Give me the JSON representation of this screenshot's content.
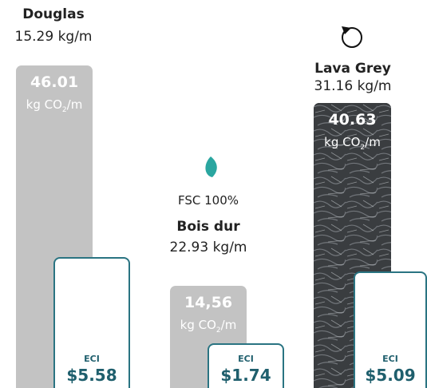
{
  "co2_unit": [
    "kg CO",
    "2",
    "/m"
  ],
  "items": [
    {
      "name": "Douglas",
      "weight": "15.29 kg/m",
      "co2": 46.01,
      "co2_label": "46.01",
      "eci_label": "ECI",
      "eci": "$5.58"
    },
    {
      "cert": "FSC 100%",
      "name": "Bois dur",
      "weight": "22.93 kg/m",
      "co2": 14.56,
      "co2_label": "14,56",
      "eci_label": "ECI",
      "eci": "$1.74"
    },
    {
      "name": "Lava Grey",
      "weight": "31.16 kg/m",
      "co2": 40.63,
      "co2_label": "40.63",
      "eci_label": "ECI",
      "eci": "$5.09"
    }
  ]
}
